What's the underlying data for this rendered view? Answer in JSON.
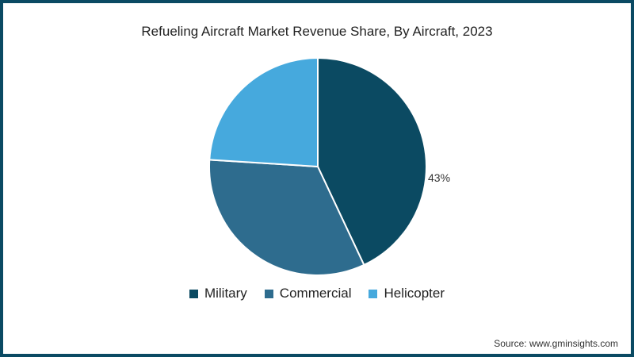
{
  "title": "Refueling Aircraft Market Revenue Share, By Aircraft, 2023",
  "source": "Source: www.gminsights.com",
  "data_label": "43%",
  "legend": [
    {
      "label": "Military",
      "color": "#0b4a62"
    },
    {
      "label": "Commercial",
      "color": "#2e6c8e"
    },
    {
      "label": "Helicopter",
      "color": "#46a9dd"
    }
  ],
  "chart_data": {
    "type": "pie",
    "title": "Refueling Aircraft Market Revenue Share, By Aircraft, 2023",
    "categories": [
      "Military",
      "Commercial",
      "Helicopter"
    ],
    "values": [
      43,
      33,
      24
    ],
    "colors": [
      "#0b4a62",
      "#2e6c8e",
      "#46a9dd"
    ],
    "data_labels": [
      "43%",
      "",
      ""
    ],
    "legend_position": "bottom"
  }
}
